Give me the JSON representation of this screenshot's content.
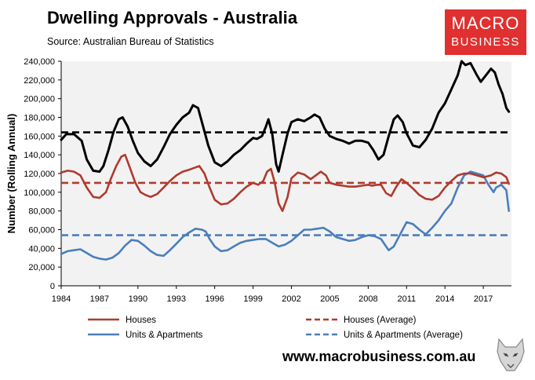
{
  "header": {
    "title": "Dwelling Approvals - Australia",
    "source": "Source: Australian Bureau of Statistics"
  },
  "logo": {
    "line1": "MACRO",
    "line2": "BUSINESS",
    "color": "#e03030"
  },
  "footer": {
    "url": "www.macrobusiness.com.au"
  },
  "colors": {
    "total": "#000000",
    "houses": "#b03a2e",
    "units": "#4a7ebb",
    "plot_bg": "#f2f2f2"
  },
  "chart_data": {
    "type": "line",
    "title": "Dwelling Approvals - Australia",
    "xlabel": "",
    "ylabel": "Number (Rolling Annual)",
    "xlim": [
      1984,
      2019.2
    ],
    "ylim": [
      0,
      240000
    ],
    "xticks": [
      "1984",
      "1987",
      "1990",
      "1993",
      "1996",
      "1999",
      "2002",
      "2005",
      "2008",
      "2011",
      "2014",
      "2017"
    ],
    "yticks": [
      "0",
      "20,000",
      "40,000",
      "60,000",
      "80,000",
      "100,000",
      "120,000",
      "140,000",
      "160,000",
      "180,000",
      "200,000",
      "220,000",
      "240,000"
    ],
    "grid": false,
    "series": [
      {
        "name": "Total",
        "in_legend": false,
        "style": "solid",
        "x": [
          1984.0,
          1984.4,
          1985.0,
          1985.6,
          1986.0,
          1986.5,
          1987.0,
          1987.3,
          1987.7,
          1988.1,
          1988.5,
          1988.8,
          1989.2,
          1989.6,
          1990.0,
          1990.5,
          1991.0,
          1991.5,
          1992.0,
          1992.5,
          1993.0,
          1993.5,
          1994.0,
          1994.3,
          1994.7,
          1995.0,
          1995.5,
          1996.0,
          1996.5,
          1997.0,
          1997.5,
          1998.0,
          1998.5,
          1999.0,
          1999.3,
          1999.7,
          2000.0,
          2000.2,
          2000.5,
          2000.8,
          2001.0,
          2001.3,
          2001.7,
          2002.0,
          2002.5,
          2003.0,
          2003.5,
          2003.8,
          2004.2,
          2004.6,
          2005.0,
          2005.5,
          2006.0,
          2006.5,
          2007.0,
          2007.5,
          2008.0,
          2008.4,
          2008.8,
          2009.2,
          2009.6,
          2010.0,
          2010.3,
          2010.7,
          2011.0,
          2011.5,
          2012.0,
          2012.5,
          2013.0,
          2013.5,
          2014.0,
          2014.5,
          2015.0,
          2015.3,
          2015.6,
          2016.0,
          2016.5,
          2016.8,
          2017.2,
          2017.6,
          2017.9,
          2018.2,
          2018.5,
          2018.8,
          2019.0
        ],
        "y": [
          156000,
          162000,
          162000,
          155000,
          135000,
          123000,
          122000,
          128000,
          145000,
          165000,
          178000,
          180000,
          170000,
          155000,
          142000,
          133000,
          128000,
          135000,
          148000,
          162000,
          172000,
          180000,
          185000,
          193000,
          190000,
          175000,
          150000,
          132000,
          128000,
          133000,
          140000,
          145000,
          152000,
          158000,
          157000,
          160000,
          170000,
          178000,
          162000,
          130000,
          122000,
          140000,
          163000,
          175000,
          178000,
          176000,
          180000,
          183000,
          180000,
          168000,
          160000,
          157000,
          155000,
          152000,
          155000,
          155000,
          153000,
          145000,
          135000,
          140000,
          160000,
          178000,
          182000,
          175000,
          163000,
          150000,
          148000,
          156000,
          168000,
          185000,
          195000,
          210000,
          225000,
          240000,
          236000,
          238000,
          225000,
          218000,
          225000,
          232000,
          228000,
          215000,
          205000,
          190000,
          186000
        ]
      },
      {
        "name": "Total (Average)",
        "in_legend": false,
        "style": "dashed",
        "x": [
          1984.0,
          2019.0
        ],
        "y": [
          164000,
          164000
        ]
      },
      {
        "name": "Houses",
        "in_legend": true,
        "style": "solid",
        "x": [
          1984.0,
          1984.5,
          1985.0,
          1985.5,
          1986.0,
          1986.5,
          1987.0,
          1987.5,
          1987.9,
          1988.3,
          1988.7,
          1989.0,
          1989.4,
          1989.8,
          1990.2,
          1990.6,
          1991.0,
          1991.5,
          1992.0,
          1992.5,
          1993.0,
          1993.5,
          1994.0,
          1994.4,
          1994.8,
          1995.2,
          1995.6,
          1996.0,
          1996.5,
          1997.0,
          1997.5,
          1998.0,
          1998.5,
          1999.0,
          1999.4,
          1999.8,
          2000.1,
          2000.4,
          2000.7,
          2001.0,
          2001.3,
          2001.7,
          2002.0,
          2002.5,
          2003.0,
          2003.5,
          2003.9,
          2004.3,
          2004.7,
          2005.0,
          2005.5,
          2006.0,
          2006.5,
          2007.0,
          2007.5,
          2008.0,
          2008.3,
          2008.7,
          2009.0,
          2009.4,
          2009.8,
          2010.2,
          2010.6,
          2011.0,
          2011.5,
          2012.0,
          2012.5,
          2013.0,
          2013.5,
          2014.0,
          2014.5,
          2015.0,
          2015.5,
          2016.0,
          2016.5,
          2017.0,
          2017.3,
          2017.6,
          2018.0,
          2018.4,
          2018.8,
          2019.0
        ],
        "y": [
          121000,
          123000,
          122000,
          118000,
          105000,
          95000,
          94000,
          100000,
          115000,
          128000,
          138000,
          140000,
          125000,
          110000,
          100000,
          97000,
          95000,
          98000,
          105000,
          112000,
          118000,
          122000,
          124000,
          126000,
          128000,
          120000,
          105000,
          92000,
          87000,
          88000,
          93000,
          100000,
          106000,
          110000,
          108000,
          112000,
          122000,
          125000,
          110000,
          88000,
          80000,
          95000,
          115000,
          121000,
          119000,
          114000,
          118000,
          122000,
          118000,
          110000,
          108000,
          107000,
          106000,
          106000,
          107000,
          108000,
          107000,
          108000,
          108000,
          99000,
          96000,
          106000,
          114000,
          110000,
          104000,
          97000,
          93000,
          92000,
          96000,
          105000,
          112000,
          118000,
          120000,
          120000,
          118000,
          116000,
          117000,
          118000,
          121000,
          120000,
          116000,
          109000
        ]
      },
      {
        "name": "Houses (Average)",
        "in_legend": true,
        "style": "dashed",
        "x": [
          1984.0,
          2019.0
        ],
        "y": [
          110000,
          110000
        ]
      },
      {
        "name": "Units & Apartments",
        "in_legend": true,
        "style": "solid",
        "x": [
          1984.0,
          1984.5,
          1985.0,
          1985.5,
          1986.0,
          1986.5,
          1987.0,
          1987.5,
          1988.0,
          1988.5,
          1989.0,
          1989.5,
          1990.0,
          1990.5,
          1991.0,
          1991.5,
          1992.0,
          1992.5,
          1993.0,
          1993.5,
          1994.0,
          1994.5,
          1995.0,
          1995.3,
          1995.6,
          1996.0,
          1996.5,
          1997.0,
          1997.5,
          1998.0,
          1998.5,
          1999.0,
          1999.5,
          2000.0,
          2000.5,
          2001.0,
          2001.5,
          2002.0,
          2002.5,
          2003.0,
          2003.5,
          2004.0,
          2004.5,
          2005.0,
          2005.5,
          2006.0,
          2006.5,
          2007.0,
          2007.5,
          2008.0,
          2008.5,
          2009.0,
          2009.3,
          2009.6,
          2010.0,
          2010.5,
          2011.0,
          2011.5,
          2012.0,
          2012.5,
          2013.0,
          2013.5,
          2014.0,
          2014.5,
          2015.0,
          2015.5,
          2016.0,
          2016.5,
          2017.0,
          2017.4,
          2017.8,
          2018.0,
          2018.4,
          2018.8,
          2019.0
        ],
        "y": [
          34000,
          37000,
          38000,
          39000,
          35000,
          31000,
          29000,
          28000,
          30000,
          35000,
          43000,
          49000,
          48000,
          43000,
          37000,
          33000,
          32000,
          38000,
          45000,
          52000,
          57000,
          61000,
          60000,
          58000,
          50000,
          42000,
          37000,
          38000,
          42000,
          46000,
          48000,
          49000,
          50000,
          50000,
          46000,
          42000,
          44000,
          48000,
          54000,
          60000,
          60000,
          61000,
          62000,
          58000,
          52000,
          50000,
          48000,
          49000,
          52000,
          54000,
          53000,
          50000,
          44000,
          38000,
          42000,
          55000,
          68000,
          66000,
          60000,
          55000,
          62000,
          70000,
          80000,
          88000,
          105000,
          118000,
          122000,
          120000,
          118000,
          108000,
          100000,
          105000,
          108000,
          102000,
          80000
        ]
      },
      {
        "name": "Units & Apartments (Average)",
        "in_legend": true,
        "style": "dashed",
        "x": [
          1984.0,
          2019.0
        ],
        "y": [
          54000,
          54000
        ]
      }
    ]
  }
}
